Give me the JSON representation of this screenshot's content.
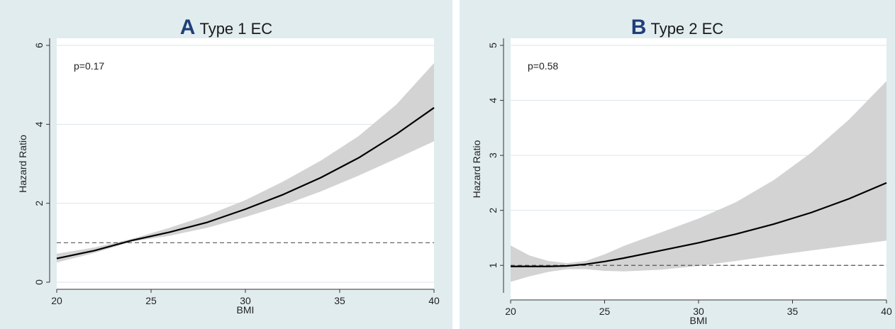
{
  "chart_data": [
    {
      "type": "line",
      "panel_letter": "A",
      "title": "Type 1 EC",
      "annotation": "p=0.17",
      "xlabel": "BMI",
      "ylabel": "Hazard Ratio",
      "xlim": [
        20,
        40
      ],
      "ylim": [
        0,
        6
      ],
      "xticks": [
        20,
        25,
        30,
        35,
        40
      ],
      "yticks": [
        0,
        2,
        4,
        6
      ],
      "grid": true,
      "reference_line": 1,
      "x": [
        20,
        22,
        24,
        26,
        28,
        30,
        32,
        34,
        36,
        38,
        40
      ],
      "hr": [
        0.6,
        0.8,
        1.06,
        1.27,
        1.52,
        1.85,
        2.22,
        2.65,
        3.15,
        3.75,
        4.42
      ],
      "ci_lower": [
        0.5,
        0.74,
        1.03,
        1.18,
        1.38,
        1.65,
        1.95,
        2.3,
        2.7,
        3.13,
        3.57
      ],
      "ci_upper": [
        0.72,
        0.88,
        1.1,
        1.38,
        1.7,
        2.08,
        2.55,
        3.08,
        3.7,
        4.5,
        5.55
      ],
      "colors": {
        "line": "#000000",
        "band": "#d3d3d3",
        "reference": "#555555",
        "grid": "#d9e6e9"
      }
    },
    {
      "type": "line",
      "panel_letter": "B",
      "title": "Type 2 EC",
      "annotation": "p=0.58",
      "xlabel": "BMI",
      "ylabel": "Hazard Ratio",
      "xlim": [
        20,
        40
      ],
      "ylim": [
        0.5,
        5
      ],
      "xticks": [
        20,
        25,
        30,
        35,
        40
      ],
      "yticks": [
        1,
        2,
        3,
        4,
        5
      ],
      "grid": true,
      "reference_line": 1,
      "x": [
        20,
        21,
        22,
        23,
        24,
        25,
        26,
        28,
        30,
        32,
        34,
        36,
        38,
        40
      ],
      "hr": [
        0.98,
        0.98,
        0.98,
        0.99,
        1.02,
        1.07,
        1.13,
        1.27,
        1.41,
        1.57,
        1.75,
        1.96,
        2.21,
        2.5
      ],
      "ci_lower": [
        0.7,
        0.8,
        0.88,
        0.93,
        0.93,
        0.9,
        0.89,
        0.92,
        0.99,
        1.08,
        1.18,
        1.27,
        1.36,
        1.45
      ],
      "ci_upper": [
        1.36,
        1.18,
        1.08,
        1.04,
        1.08,
        1.2,
        1.35,
        1.6,
        1.85,
        2.15,
        2.55,
        3.05,
        3.65,
        4.35
      ],
      "colors": {
        "line": "#000000",
        "band": "#d3d3d3",
        "reference": "#555555",
        "grid": "#d9e6e9"
      }
    }
  ]
}
